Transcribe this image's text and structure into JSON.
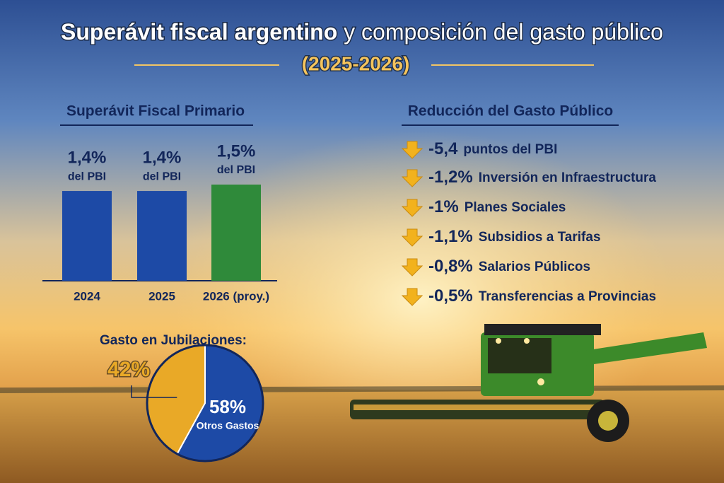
{
  "header": {
    "title_bold": "Superávit fiscal argentino",
    "title_rest": "y composición del gasto público",
    "subtitle": "(2025-2026)"
  },
  "chart_data": [
    {
      "type": "bar",
      "title": "Superávit Fiscal Primario",
      "categories": [
        "2024",
        "2025",
        "2026 (proy.)"
      ],
      "values": [
        1.4,
        1.4,
        1.5
      ],
      "value_labels": [
        "1,4%",
        "1,4%",
        "1,5%"
      ],
      "value_label_note": "del PBI",
      "colors": [
        "#1d4aa6",
        "#1d4aa6",
        "#2f8a3a"
      ]
    },
    {
      "type": "pie",
      "title": "Gasto en Jubilaciones:",
      "categories": [
        null,
        "Otros Gastos"
      ],
      "values": [
        42,
        58
      ],
      "value_labels": [
        "42%",
        "58%"
      ],
      "colors": [
        "#e9a927",
        "#1d4aa6"
      ]
    }
  ],
  "reductions": {
    "title": "Reducción del Gasto Público",
    "items": [
      {
        "amount": "-5,4",
        "label": "puntos del PBI"
      },
      {
        "amount": "-1,2%",
        "label": "Inversión en Infraestructura"
      },
      {
        "amount": "-1%",
        "label": "Planes Sociales"
      },
      {
        "amount": "-1,1%",
        "label": "Subsidios a Tarifas"
      },
      {
        "amount": "-0,8%",
        "label": "Salarios Públicos"
      },
      {
        "amount": "-0,5%",
        "label": "Transferencias a Provincias"
      }
    ]
  }
}
